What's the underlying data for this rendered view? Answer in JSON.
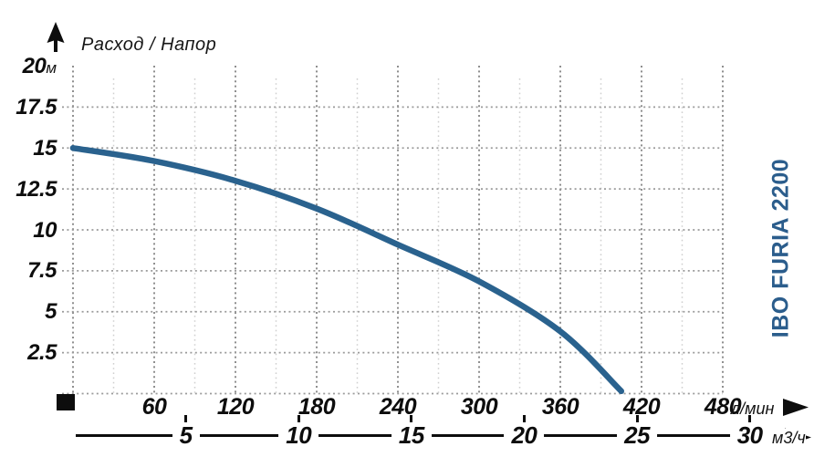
{
  "title": "Расход / Напор",
  "product_label": "IBO FURIA 2200",
  "colors": {
    "curve": "#2a628e",
    "brand": "#2b5d8c",
    "grid_major": "#8f8f8f",
    "grid_minor": "#cfcfcf",
    "grid_horizontal": "#9a9a9a",
    "text": "#0d0d0d"
  },
  "icons": {
    "y_axis_arrow": "arrow-up-icon",
    "lmin_axis_arrow": "arrow-right-icon",
    "m3h_axis_arrow": "arrow-right-icon",
    "origin_marker": "black-square-marker"
  },
  "y_axis": {
    "unit": "м",
    "tick_labels": [
      "20",
      "17.5",
      "15",
      "12.5",
      "10",
      "7.5",
      "5",
      "2.5"
    ],
    "tick_values": [
      20,
      17.5,
      15,
      12.5,
      10,
      7.5,
      5,
      2.5
    ]
  },
  "x_axis_lmin": {
    "unit": "л/мин",
    "tick_labels": [
      "60",
      "120",
      "180",
      "240",
      "300",
      "360",
      "420",
      "480"
    ],
    "tick_values": [
      60,
      120,
      180,
      240,
      300,
      360,
      420,
      480
    ]
  },
  "x_axis_m3h": {
    "unit": "м3/ч",
    "tick_labels": [
      "5",
      "10",
      "15",
      "20",
      "25",
      "30"
    ],
    "tick_values": [
      5,
      10,
      15,
      20,
      25,
      30
    ]
  },
  "chart_data": {
    "type": "line",
    "title": "Расход / Напор",
    "ylabel": "Напор, м",
    "xlabel_primary": "Расход, л/мин",
    "xlabel_secondary": "Расход, м3/ч",
    "xlim_lmin": [
      0,
      480
    ],
    "ylim_m": [
      0,
      20
    ],
    "grid": "dotted",
    "legend_position": "none",
    "series": [
      {
        "name": "IBO FURIA 2200",
        "points_lmin_vs_head_m": [
          [
            0,
            15.0
          ],
          [
            60,
            14.2
          ],
          [
            120,
            13.0
          ],
          [
            180,
            11.3
          ],
          [
            240,
            9.1
          ],
          [
            300,
            6.85
          ],
          [
            360,
            3.8
          ],
          [
            405,
            0.15
          ]
        ]
      }
    ]
  }
}
